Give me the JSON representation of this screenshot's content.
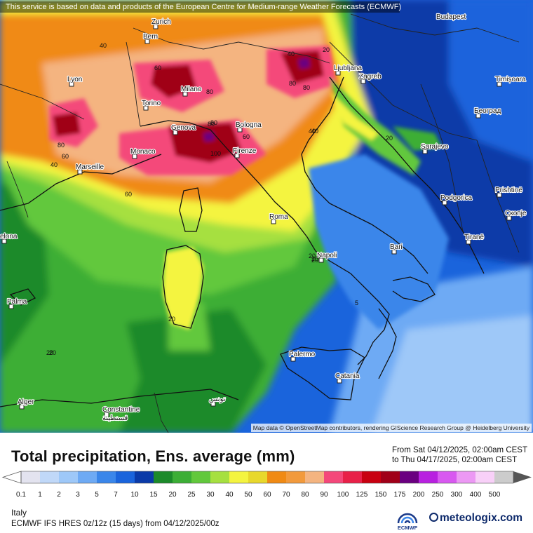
{
  "notice": "This service is based on data and products of the European Centre for Medium-range Weather Forecasts (ECMWF)",
  "attribution": "Map data © OpenStreetMap contributors, rendering GIScience Research Group @ Heidelberg University",
  "title": "Total precipitation, Ens. average (mm)",
  "period": {
    "from": "From Sat 04/12/2025, 02:00am CEST",
    "to": "to Thu 04/17/2025, 02:00am CEST"
  },
  "region": "Italy",
  "model": "ECMWF IFS HRES 0z/12z (15 days) from  04/12/2025/00z",
  "logos": {
    "ecmwf": "ECMWF",
    "meteologix": "meteologix.com"
  },
  "legend": {
    "labels": [
      "0.1",
      "1",
      "2",
      "3",
      "5",
      "7",
      "10",
      "15",
      "20",
      "25",
      "30",
      "40",
      "50",
      "60",
      "70",
      "80",
      "90",
      "100",
      "125",
      "150",
      "175",
      "200",
      "250",
      "300",
      "400",
      "500"
    ],
    "colors": [
      "#e3e3ef",
      "#c0d8f8",
      "#9ec8f8",
      "#6eaaf4",
      "#3a86ea",
      "#1a64dc",
      "#0a3aa8",
      "#1c8a2a",
      "#3cae36",
      "#62c83c",
      "#a6e040",
      "#f4f440",
      "#e8d82c",
      "#f08a14",
      "#f29a3c",
      "#f4b480",
      "#f4487a",
      "#e82048",
      "#c80010",
      "#a00018",
      "#6a0080",
      "#b820e0",
      "#d858f0",
      "#ec98f4",
      "#f8d0f8",
      "#cccccc"
    ]
  },
  "cities": [
    {
      "name": "Budapest"
    },
    {
      "name": "Bern"
    },
    {
      "name": "Zurich"
    },
    {
      "name": "Lyon"
    },
    {
      "name": "Milano"
    },
    {
      "name": "Torino"
    },
    {
      "name": "Ljubljana"
    },
    {
      "name": "Zagreb"
    },
    {
      "name": "Timișoara"
    },
    {
      "name": "Београд"
    },
    {
      "name": "Genova"
    },
    {
      "name": "Bologna"
    },
    {
      "name": "Monaco"
    },
    {
      "name": "Firenze"
    },
    {
      "name": "Marseille"
    },
    {
      "name": "Sarajevo"
    },
    {
      "name": "Podgorica"
    },
    {
      "name": "Prishtinë"
    },
    {
      "name": "Скопје"
    },
    {
      "name": "Roma"
    },
    {
      "name": "Tiranë"
    },
    {
      "name": "Bari"
    },
    {
      "name": "Napoli"
    },
    {
      "name": "elona"
    },
    {
      "name": "Palma"
    },
    {
      "name": "Palermo"
    },
    {
      "name": "Catania"
    },
    {
      "name": "Alger"
    },
    {
      "name": "Constantine"
    },
    {
      "name": "قسنطينة"
    },
    {
      "name": "تونس"
    }
  ],
  "isolines": [
    "40",
    "40",
    "60",
    "80",
    "80",
    "80",
    "80",
    "60",
    "60",
    "80",
    "100",
    "40",
    "20",
    "80",
    "60",
    "40",
    "20",
    "20",
    "20",
    "5",
    "20",
    "20",
    "20",
    "40",
    "20"
  ]
}
